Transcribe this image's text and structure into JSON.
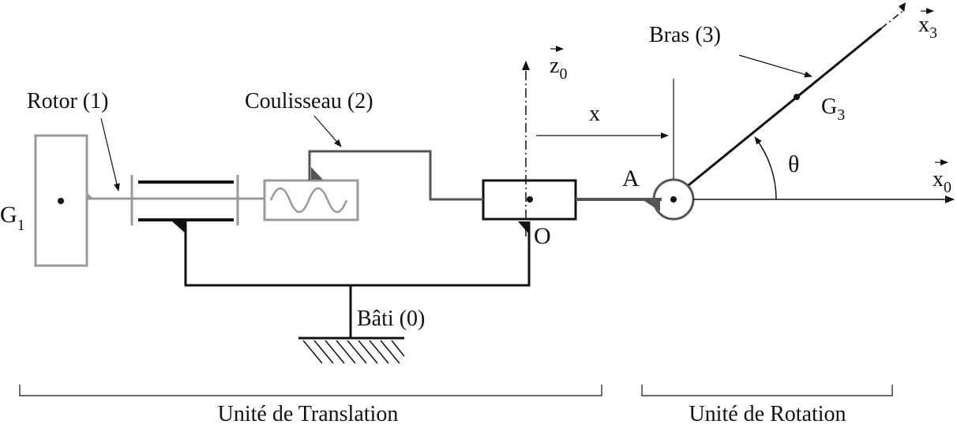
{
  "labels": {
    "rotor": "Rotor (1)",
    "coulisseau": "Coulisseau (2)",
    "bras": "Bras (3)",
    "bati": "Bâti (0)",
    "point_a": "A",
    "point_o": "O",
    "distance_x": "x",
    "angle_theta": "θ",
    "g1_main": "G",
    "g1_sub": "1",
    "g3_main": "G",
    "g3_sub": "3",
    "z0_main": "z",
    "z0_sub": "0",
    "x0_main": "x",
    "x0_sub": "0",
    "x3_main": "x",
    "x3_sub": "3",
    "unit_translation": "Unité de Translation",
    "unit_rotation": "Unité de Rotation"
  },
  "colors": {
    "black": "#111111",
    "dark_gray": "#555555",
    "light_gray": "#999999"
  }
}
